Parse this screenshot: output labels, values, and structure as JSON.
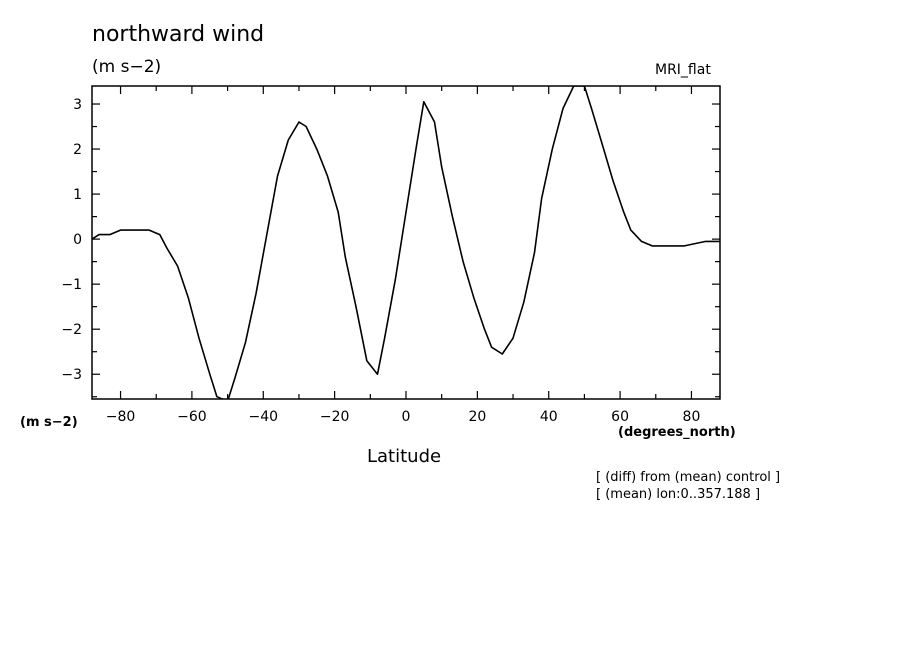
{
  "header": {
    "title": "northward wind",
    "units": "(m s−2)",
    "model": "MRI_flat"
  },
  "axes": {
    "y_units": "(m s−2)",
    "x_units": "(degrees_north)",
    "x_label": "Latitude"
  },
  "notes": [
    "[ (diff) from (mean) control ]",
    "[ (mean) lon:0..357.188 ]"
  ],
  "chart_data": {
    "type": "line",
    "xlabel": "Latitude",
    "ylabel": "(m s−2)",
    "xlim": [
      -88,
      88
    ],
    "ylim": [
      -3.55,
      3.4
    ],
    "x_ticks": [
      -80,
      -60,
      -40,
      -20,
      0,
      20,
      40,
      60,
      80
    ],
    "x_tick_labels": [
      "−80",
      "−60",
      "−40",
      "−20",
      "0",
      "20",
      "40",
      "60",
      "80"
    ],
    "y_ticks": [
      3,
      2,
      1,
      0,
      -1,
      -2,
      -3
    ],
    "y_tick_labels": [
      "3",
      "2",
      "1",
      "0",
      "−1",
      "−2",
      "−3"
    ],
    "series": [
      {
        "x": [
          -88,
          -86,
          -83,
          -80,
          -78,
          -75,
          -72,
          -69,
          -67,
          -64,
          -61,
          -58,
          -55,
          -53,
          -50,
          -48,
          -45,
          -42,
          -39,
          -36,
          -33,
          -30,
          -28,
          -25,
          -22,
          -19,
          -17,
          -14,
          -11,
          -8,
          -6,
          -3,
          0,
          3,
          5,
          8,
          10,
          13,
          16,
          19,
          22,
          24,
          27,
          30,
          33,
          36,
          38,
          41,
          44,
          47,
          50,
          52,
          55,
          58,
          61,
          63,
          66,
          69,
          72,
          75,
          78,
          81,
          84,
          86,
          88
        ],
        "values": [
          0.0,
          0.1,
          0.1,
          0.2,
          0.2,
          0.2,
          0.2,
          0.1,
          -0.2,
          -0.6,
          -1.3,
          -2.2,
          -3.0,
          -3.5,
          -3.6,
          -3.1,
          -2.3,
          -1.2,
          0.1,
          1.4,
          2.2,
          2.6,
          2.5,
          2.0,
          1.4,
          0.6,
          -0.4,
          -1.5,
          -2.7,
          -3.0,
          -2.2,
          -0.9,
          0.6,
          2.1,
          3.05,
          2.6,
          1.6,
          0.5,
          -0.5,
          -1.3,
          -2.0,
          -2.4,
          -2.55,
          -2.2,
          -1.4,
          -0.3,
          0.9,
          2.0,
          2.9,
          3.4,
          3.4,
          2.9,
          2.1,
          1.3,
          0.6,
          0.2,
          -0.05,
          -0.15,
          -0.15,
          -0.15,
          -0.15,
          -0.1,
          -0.05,
          -0.05,
          -0.05
        ]
      }
    ]
  }
}
